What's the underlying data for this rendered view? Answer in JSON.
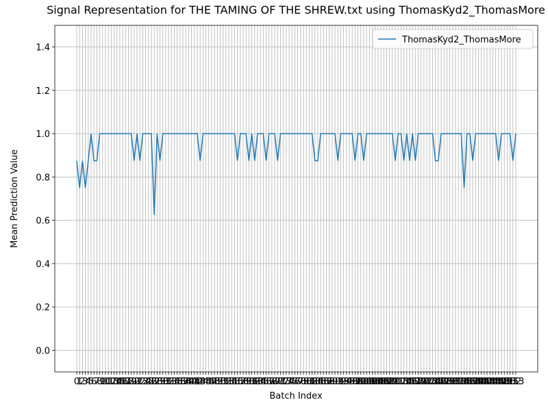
{
  "chart_data": {
    "type": "line",
    "title": "Signal Representation for THE TAMING OF THE SHREW.txt using ThomasKyd2_ThomasMore",
    "x_label": "Batch Index",
    "y_label": "Mean Prediction Value",
    "x": [
      0,
      1,
      2,
      3,
      4,
      5,
      6,
      7,
      8,
      9,
      10,
      11,
      12,
      13,
      14,
      15,
      16,
      17,
      18,
      19,
      20,
      21,
      22,
      23,
      24,
      25,
      26,
      27,
      28,
      29,
      30,
      31,
      32,
      33,
      34,
      35,
      36,
      37,
      38,
      39,
      40,
      41,
      42,
      43,
      44,
      45,
      46,
      47,
      48,
      49,
      50,
      51,
      52,
      53,
      54,
      55,
      56,
      57,
      58,
      59,
      60,
      61,
      62,
      63,
      64,
      65,
      66,
      67,
      68,
      69,
      70,
      71,
      72,
      73,
      74,
      75,
      76,
      77,
      78,
      79,
      80,
      81,
      82,
      83,
      84,
      85,
      86,
      87,
      88,
      89,
      90,
      91,
      92,
      93,
      94,
      95,
      96,
      97,
      98,
      99,
      100,
      101,
      102,
      103,
      104,
      105,
      106,
      107,
      108,
      109,
      110,
      111,
      112,
      113,
      114,
      115,
      116,
      117,
      118,
      119,
      120,
      121,
      122,
      123,
      124,
      125,
      126,
      127,
      128,
      129,
      130,
      131,
      132,
      133,
      134,
      135,
      136,
      137,
      138,
      139,
      140,
      141,
      142,
      143,
      144,
      145,
      146,
      147,
      148,
      149,
      150,
      151,
      152,
      153
    ],
    "series": [
      {
        "name": "ThomasKyd2_ThomasMore",
        "color": "#1f77b4",
        "values": [
          0.875,
          0.75,
          0.875,
          0.75,
          0.875,
          1,
          0.875,
          0.875,
          1,
          1,
          1,
          1,
          1,
          1,
          1,
          1,
          1,
          1,
          1,
          1,
          0.875,
          1,
          0.875,
          1,
          1,
          1,
          1,
          0.625,
          1,
          0.875,
          1,
          1,
          1,
          1,
          1,
          1,
          1,
          1,
          1,
          1,
          1,
          1,
          1,
          0.875,
          1,
          1,
          1,
          1,
          1,
          1,
          1,
          1,
          1,
          1,
          1,
          1,
          0.875,
          1,
          1,
          1,
          0.875,
          1,
          0.875,
          1,
          1,
          1,
          0.875,
          1,
          1,
          1,
          0.875,
          1,
          1,
          1,
          1,
          1,
          1,
          1,
          1,
          1,
          1,
          1,
          1,
          0.875,
          0.875,
          1,
          1,
          1,
          1,
          1,
          1,
          0.875,
          1,
          1,
          1,
          1,
          1,
          0.875,
          1,
          1,
          0.875,
          1,
          1,
          1,
          1,
          1,
          1,
          1,
          1,
          1,
          1,
          0.875,
          1,
          1,
          0.875,
          1,
          0.875,
          1,
          0.875,
          1,
          1,
          1,
          1,
          1,
          1,
          0.875,
          0.875,
          1,
          1,
          1,
          1,
          1,
          1,
          1,
          1,
          0.75,
          1,
          1,
          0.875,
          1,
          1,
          1,
          1,
          1,
          1,
          1,
          1,
          0.875,
          1,
          1,
          1,
          1,
          0.875,
          1
        ]
      }
    ],
    "xlim": [
      -7.65,
      160.65
    ],
    "xticks": [
      0,
      1,
      2,
      3,
      4,
      5,
      6,
      7,
      8,
      9,
      10,
      11,
      12,
      13,
      14,
      15,
      16,
      17,
      18,
      19,
      20,
      21,
      22,
      23,
      24,
      25,
      26,
      27,
      28,
      29,
      30,
      31,
      32,
      33,
      34,
      35,
      36,
      37,
      38,
      39,
      40,
      41,
      42,
      43,
      44,
      45,
      46,
      47,
      48,
      49,
      50,
      51,
      52,
      53,
      54,
      55,
      56,
      57,
      58,
      59,
      60,
      61,
      62,
      63,
      64,
      65,
      66,
      67,
      68,
      69,
      70,
      71,
      72,
      73,
      74,
      75,
      76,
      77,
      78,
      79,
      80,
      81,
      82,
      83,
      84,
      85,
      86,
      87,
      88,
      89,
      90,
      91,
      92,
      93,
      94,
      95,
      96,
      97,
      98,
      99,
      100,
      101,
      102,
      103,
      104,
      105,
      106,
      107,
      108,
      109,
      110,
      111,
      112,
      113,
      114,
      115,
      116,
      117,
      118,
      119,
      120,
      121,
      122,
      123,
      124,
      125,
      126,
      127,
      128,
      129,
      130,
      131,
      132,
      133,
      134,
      135,
      136,
      137,
      138,
      139,
      140,
      141,
      142,
      143,
      144,
      145,
      146,
      147,
      148,
      149,
      150,
      151,
      152,
      153
    ],
    "ylim": [
      -0.1,
      1.5
    ],
    "yticks": [
      {
        "value": 0,
        "label": "0.0"
      },
      0.2,
      0.4,
      0.6,
      0.8,
      {
        "value": 1,
        "label": "1.0"
      },
      1.2,
      1.4
    ],
    "grid": true,
    "legend": "upper right"
  }
}
